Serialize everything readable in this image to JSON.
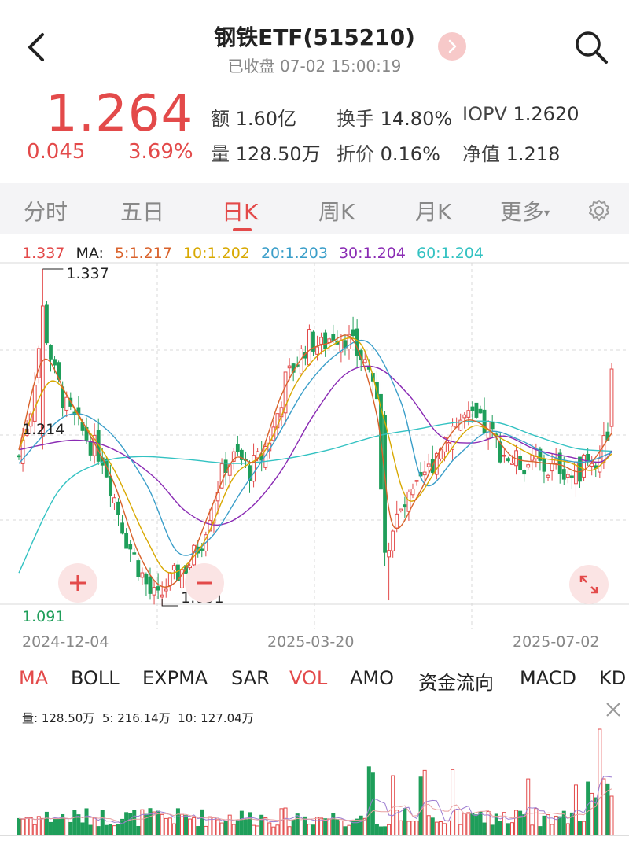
{
  "header": {
    "title": "钢铁ETF(515210)",
    "status": "已收盘 07-02 15:00:19"
  },
  "quote": {
    "price": "1.264",
    "change": "0.045",
    "change_pct": "3.69%",
    "amount_label": "额",
    "amount": "1.60亿",
    "turnover_label": "换手",
    "turnover": "14.80%",
    "iopv_label": "IOPV",
    "iopv": "1.2620",
    "volume_label": "量",
    "volume": "128.50万",
    "discount_label": "折价",
    "discount": "0.16%",
    "nav_label": "净值",
    "nav": "1.218"
  },
  "tabs": [
    "分时",
    "五日",
    "日K",
    "周K",
    "月K",
    "更多"
  ],
  "active_tab": "日K",
  "ma_legend": {
    "price": "1.337",
    "ma_label": "MA:",
    "ma5": "5:1.217",
    "ma10": "10:1.202",
    "ma20": "20:1.203",
    "ma30": "30:1.204",
    "ma60": "60:1.204"
  },
  "colors": {
    "up": "#e34a4a",
    "down": "#1f9e5a",
    "ma5": "#d9622b",
    "ma10": "#d8a800",
    "ma20": "#3a9ec9",
    "ma30": "#8a2bb4",
    "ma60": "#33c2c2"
  },
  "chart_data": {
    "type": "candlestick",
    "y_high": "1.337",
    "y_low": "1.091",
    "y_max_axis": "1.337",
    "y_mid_axis": "1.214",
    "y_min_axis": "1.091",
    "dates": [
      "2024-12-04",
      "2025-03-20",
      "2025-07-02"
    ],
    "close_path": [
      [
        0,
        1.2
      ],
      [
        3,
        1.236
      ],
      [
        6,
        1.302
      ],
      [
        9,
        1.26
      ],
      [
        12,
        1.235
      ],
      [
        15,
        1.222
      ],
      [
        18,
        1.21
      ],
      [
        21,
        1.2
      ],
      [
        24,
        1.17
      ],
      [
        27,
        1.14
      ],
      [
        30,
        1.12
      ],
      [
        33,
        1.1
      ],
      [
        35,
        1.095
      ],
      [
        37,
        1.105
      ],
      [
        40,
        1.115
      ],
      [
        43,
        1.122
      ],
      [
        46,
        1.14
      ],
      [
        49,
        1.17
      ],
      [
        52,
        1.195
      ],
      [
        55,
        1.2
      ],
      [
        58,
        1.19
      ],
      [
        61,
        1.2
      ],
      [
        64,
        1.22
      ],
      [
        67,
        1.255
      ],
      [
        70,
        1.27
      ],
      [
        73,
        1.285
      ],
      [
        76,
        1.28
      ],
      [
        79,
        1.29
      ],
      [
        82,
        1.288
      ],
      [
        85,
        1.276
      ],
      [
        88,
        1.266
      ],
      [
        90,
        1.24
      ],
      [
        92,
        1.13
      ],
      [
        94,
        1.15
      ],
      [
        97,
        1.163
      ],
      [
        100,
        1.175
      ],
      [
        103,
        1.19
      ],
      [
        106,
        1.21
      ],
      [
        109,
        1.222
      ],
      [
        112,
        1.228
      ],
      [
        115,
        1.225
      ],
      [
        118,
        1.22
      ],
      [
        121,
        1.205
      ],
      [
        124,
        1.197
      ],
      [
        127,
        1.195
      ],
      [
        130,
        1.196
      ],
      [
        133,
        1.19
      ],
      [
        136,
        1.193
      ],
      [
        139,
        1.186
      ],
      [
        142,
        1.193
      ],
      [
        145,
        1.196
      ],
      [
        148,
        1.219
      ],
      [
        149,
        1.264
      ]
    ],
    "ma_lines": {
      "ma5": [
        [
          0,
          1.205
        ],
        [
          6,
          1.27
        ],
        [
          12,
          1.245
        ],
        [
          18,
          1.215
        ],
        [
          24,
          1.18
        ],
        [
          30,
          1.13
        ],
        [
          36,
          1.105
        ],
        [
          42,
          1.118
        ],
        [
          48,
          1.16
        ],
        [
          54,
          1.198
        ],
        [
          60,
          1.198
        ],
        [
          66,
          1.245
        ],
        [
          72,
          1.275
        ],
        [
          78,
          1.283
        ],
        [
          84,
          1.285
        ],
        [
          90,
          1.23
        ],
        [
          94,
          1.15
        ],
        [
          100,
          1.17
        ],
        [
          106,
          1.205
        ],
        [
          112,
          1.226
        ],
        [
          118,
          1.22
        ],
        [
          124,
          1.2
        ],
        [
          130,
          1.196
        ],
        [
          136,
          1.194
        ],
        [
          142,
          1.19
        ],
        [
          149,
          1.217
        ]
      ],
      "ma10": [
        [
          0,
          1.205
        ],
        [
          8,
          1.255
        ],
        [
          16,
          1.225
        ],
        [
          24,
          1.19
        ],
        [
          32,
          1.14
        ],
        [
          38,
          1.115
        ],
        [
          46,
          1.135
        ],
        [
          54,
          1.185
        ],
        [
          62,
          1.205
        ],
        [
          70,
          1.255
        ],
        [
          78,
          1.28
        ],
        [
          86,
          1.282
        ],
        [
          92,
          1.225
        ],
        [
          98,
          1.168
        ],
        [
          106,
          1.195
        ],
        [
          114,
          1.222
        ],
        [
          122,
          1.212
        ],
        [
          130,
          1.2
        ],
        [
          138,
          1.196
        ],
        [
          144,
          1.19
        ],
        [
          149,
          1.202
        ]
      ],
      "ma20": [
        [
          0,
          1.195
        ],
        [
          12,
          1.23
        ],
        [
          22,
          1.22
        ],
        [
          32,
          1.18
        ],
        [
          40,
          1.13
        ],
        [
          48,
          1.14
        ],
        [
          56,
          1.175
        ],
        [
          64,
          1.21
        ],
        [
          72,
          1.25
        ],
        [
          80,
          1.275
        ],
        [
          88,
          1.283
        ],
        [
          96,
          1.24
        ],
        [
          102,
          1.18
        ],
        [
          110,
          1.2
        ],
        [
          118,
          1.218
        ],
        [
          126,
          1.212
        ],
        [
          134,
          1.2
        ],
        [
          142,
          1.196
        ],
        [
          149,
          1.203
        ]
      ],
      "ma30": [
        [
          0,
          1.205
        ],
        [
          14,
          1.212
        ],
        [
          24,
          1.205
        ],
        [
          34,
          1.185
        ],
        [
          42,
          1.16
        ],
        [
          50,
          1.15
        ],
        [
          58,
          1.162
        ],
        [
          66,
          1.19
        ],
        [
          74,
          1.23
        ],
        [
          82,
          1.26
        ],
        [
          90,
          1.265
        ],
        [
          98,
          1.245
        ],
        [
          106,
          1.215
        ],
        [
          114,
          1.21
        ],
        [
          122,
          1.215
        ],
        [
          130,
          1.205
        ],
        [
          138,
          1.2
        ],
        [
          146,
          1.196
        ],
        [
          149,
          1.204
        ]
      ],
      "ma60": [
        [
          0,
          1.115
        ],
        [
          10,
          1.175
        ],
        [
          20,
          1.195
        ],
        [
          30,
          1.2
        ],
        [
          42,
          1.198
        ],
        [
          54,
          1.195
        ],
        [
          66,
          1.198
        ],
        [
          78,
          1.205
        ],
        [
          90,
          1.215
        ],
        [
          100,
          1.22
        ],
        [
          110,
          1.225
        ],
        [
          120,
          1.225
        ],
        [
          130,
          1.215
        ],
        [
          140,
          1.206
        ],
        [
          149,
          1.204
        ]
      ]
    }
  },
  "indicators": [
    "MA",
    "BOLL",
    "EXPMA",
    "SAR",
    "VOL",
    "AMO",
    "资金流向",
    "MACD",
    "KD"
  ],
  "active_indicators": [
    "MA",
    "VOL"
  ],
  "volume_legend": {
    "vol": "量: 128.50万",
    "ma5": "5: 216.14万",
    "ma10": "10: 127.04万"
  },
  "icons": {
    "back": "chevron-left-icon",
    "next": "chevron-right-icon",
    "search": "search-icon",
    "settings": "gear-icon",
    "zoom_in": "plus-icon",
    "zoom_out": "minus-icon",
    "fullscreen": "expand-icon",
    "close": "close-icon"
  }
}
